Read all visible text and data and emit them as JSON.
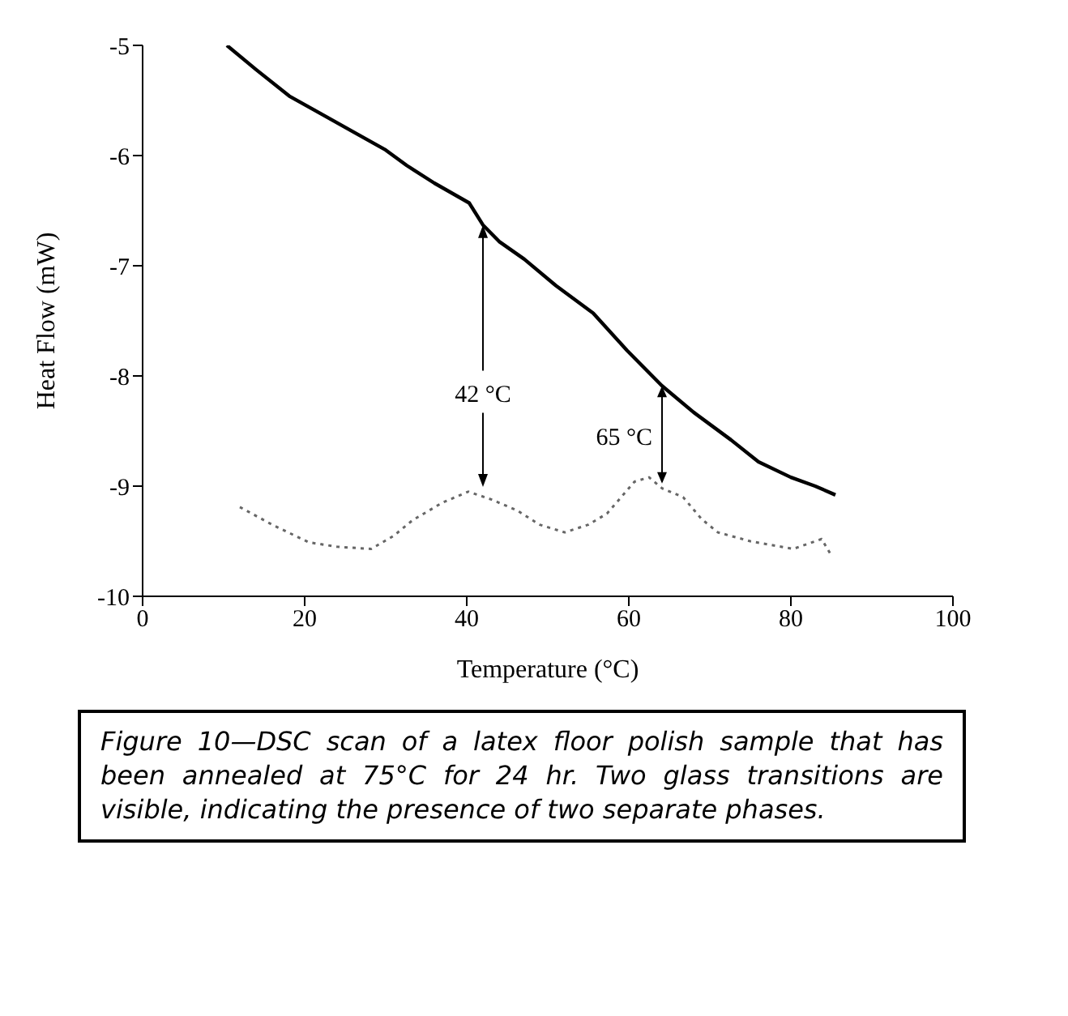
{
  "chart_data": {
    "type": "line",
    "xlabel": "Temperature (°C)",
    "ylabel": "Heat Flow (mW)",
    "xlim": [
      0,
      100
    ],
    "xticks": [
      0,
      20,
      40,
      60,
      80,
      100
    ],
    "ylim": [
      -10,
      -5
    ],
    "yticks": [
      -5,
      -6,
      -7,
      -8,
      -9,
      -10
    ],
    "grid": false,
    "legend": false,
    "marker": "none",
    "series": [
      {
        "color": "#000000",
        "line_style": "solid",
        "x": [
          10.4,
          14,
          18.1,
          22,
          26.6,
          30,
          32.6,
          36,
          40.3,
          42,
          44,
          47.1,
          51,
          55.6,
          59.8,
          64.1,
          68,
          72.6,
          76,
          80,
          83,
          85.5
        ],
        "values": [
          -5,
          -5.22,
          -5.46,
          -5.62,
          -5.81,
          -5.95,
          -6.09,
          -6.25,
          -6.43,
          -6.63,
          -6.78,
          -6.94,
          -7.18,
          -7.43,
          -7.77,
          -8.09,
          -8.33,
          -8.58,
          -8.78,
          -8.92,
          -9.0,
          -9.08
        ]
      },
      {
        "color": "#666666",
        "line_style": "dotted",
        "x": [
          12,
          16,
          20.5,
          24,
          28.2,
          31,
          33.3,
          37,
          40.2,
          43,
          46.2,
          49,
          52.1,
          55,
          57.3,
          60.7,
          62.5,
          64.1,
          66.7,
          69,
          71,
          75,
          80.3,
          83.8,
          85
        ],
        "values": [
          -9.19,
          -9.35,
          -9.51,
          -9.55,
          -9.57,
          -9.45,
          -9.31,
          -9.15,
          -9.05,
          -9.12,
          -9.22,
          -9.35,
          -9.42,
          -9.35,
          -9.25,
          -8.96,
          -8.92,
          -9.02,
          -9.1,
          -9.3,
          -9.42,
          -9.5,
          -9.57,
          -9.48,
          -9.63
        ]
      }
    ],
    "annotations": [
      {
        "text": "42 °C",
        "x": 42,
        "y": -6.63
      },
      {
        "text": "65 °C",
        "x": 64.1,
        "y": -8.09
      },
      "Figure 10—DSC scan of a latex floor polish sample that has been annealed at 75°C for 24 hr. Two glass transitions are visible, indicating the presence of two separate phases."
    ]
  }
}
